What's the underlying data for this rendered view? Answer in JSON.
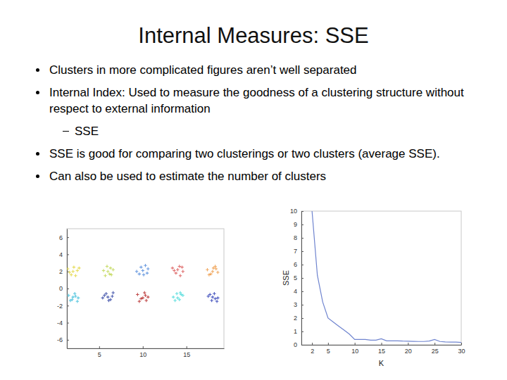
{
  "slide": {
    "title": "Internal Measures: SSE",
    "bullets": [
      {
        "text": "Clusters in more complicated figures aren’t well separated"
      },
      {
        "text": "Internal Index:  Used to measure the goodness of a clustering structure without respect to external information",
        "sub": [
          "SSE"
        ]
      },
      {
        "text": "SSE is good for comparing two clusterings or two clusters (average SSE)."
      },
      {
        "text": "Can also be used to estimate the number of clusters"
      }
    ]
  },
  "chart_data": [
    {
      "type": "scatter",
      "marker": "+",
      "xlim": [
        1.3,
        19.3
      ],
      "ylim": [
        -7,
        7
      ],
      "xticks": [
        5,
        10,
        15
      ],
      "yticks": [
        -6,
        -4,
        -2,
        0,
        2,
        4,
        6
      ],
      "series": [
        {
          "color": "#e6dc5a",
          "x": [
            1.4,
            1.8,
            2.1,
            2.5,
            1.6,
            2.3,
            2.7,
            2.0
          ],
          "values": [
            2.3,
            1.6,
            2.5,
            2.1,
            1.9,
            1.5,
            2.4,
            2.0
          ]
        },
        {
          "color": "#c8dc6a",
          "x": [
            5.5,
            5.9,
            6.2,
            6.6,
            5.7,
            6.3,
            6.0,
            6.4
          ],
          "values": [
            2.1,
            2.6,
            1.7,
            2.2,
            1.5,
            2.4,
            2.0,
            1.6
          ]
        },
        {
          "color": "#6b9be0",
          "x": [
            9.3,
            9.8,
            10.1,
            10.6,
            9.6,
            10.3,
            10.0,
            10.5
          ],
          "values": [
            2.0,
            2.5,
            1.6,
            2.3,
            1.7,
            2.7,
            2.1,
            1.8
          ]
        },
        {
          "color": "#e07070",
          "x": [
            13.4,
            13.8,
            14.2,
            14.6,
            13.6,
            14.3,
            14.0,
            14.5
          ],
          "values": [
            2.4,
            1.8,
            2.6,
            2.0,
            2.1,
            1.5,
            2.2,
            2.5
          ]
        },
        {
          "color": "#f0a860",
          "x": [
            17.4,
            17.8,
            18.1,
            18.6,
            17.6,
            18.3,
            18.0,
            18.4
          ],
          "values": [
            2.2,
            1.7,
            2.4,
            1.9,
            1.6,
            2.6,
            2.0,
            2.3
          ]
        },
        {
          "color": "#5cc8e0",
          "x": [
            1.5,
            1.9,
            2.2,
            2.6,
            1.7,
            2.3,
            2.0,
            2.5
          ],
          "values": [
            -0.8,
            -1.3,
            -0.6,
            -1.1,
            -1.4,
            -0.9,
            -1.0,
            -1.5
          ]
        },
        {
          "color": "#4f5fb0",
          "x": [
            5.4,
            5.8,
            6.1,
            6.5,
            5.6,
            6.3,
            6.0,
            6.6
          ],
          "values": [
            -1.1,
            -0.6,
            -1.4,
            -0.9,
            -0.8,
            -1.3,
            -1.0,
            -0.5
          ]
        },
        {
          "color": "#c04848",
          "x": [
            9.4,
            9.8,
            10.2,
            10.6,
            9.6,
            10.3,
            10.0,
            10.4
          ],
          "values": [
            -0.7,
            -1.2,
            -0.5,
            -1.0,
            -1.5,
            -0.8,
            -1.1,
            -1.4
          ]
        },
        {
          "color": "#66e0e0",
          "x": [
            13.5,
            13.9,
            14.2,
            14.6,
            13.7,
            14.4,
            14.0,
            14.3
          ],
          "values": [
            -1.0,
            -0.6,
            -1.3,
            -0.8,
            -1.4,
            -0.7,
            -1.1,
            -0.5
          ]
        },
        {
          "color": "#4a58c0",
          "x": [
            17.5,
            17.9,
            18.2,
            18.6,
            17.7,
            18.3,
            18.0,
            18.5
          ],
          "values": [
            -0.9,
            -1.4,
            -0.6,
            -1.1,
            -0.7,
            -1.2,
            -1.0,
            -1.5
          ]
        }
      ]
    },
    {
      "type": "line",
      "x_label": "K",
      "y_label": "SSE",
      "line_style": "solid",
      "xlim": [
        0,
        30
      ],
      "ylim": [
        0,
        10
      ],
      "xticks": [
        2,
        5,
        10,
        15,
        20,
        25,
        30
      ],
      "yticks": [
        0,
        1,
        2,
        3,
        4,
        5,
        6,
        7,
        8,
        9,
        10
      ],
      "x": [
        2,
        3,
        4,
        5,
        6,
        7,
        8,
        9,
        10,
        11,
        12,
        13,
        14,
        15,
        16,
        17,
        18,
        19,
        20,
        21,
        22,
        23,
        24,
        25,
        26,
        27,
        28,
        29,
        30
      ],
      "series": [
        {
          "color": "#6f84cf",
          "values": [
            10,
            5.2,
            3.2,
            2.0,
            1.7,
            1.4,
            1.1,
            0.8,
            0.4,
            0.4,
            0.4,
            0.35,
            0.35,
            0.45,
            0.3,
            0.3,
            0.3,
            0.28,
            0.27,
            0.26,
            0.25,
            0.25,
            0.28,
            0.4,
            0.25,
            0.22,
            0.2,
            0.2,
            0.18
          ]
        }
      ]
    }
  ]
}
